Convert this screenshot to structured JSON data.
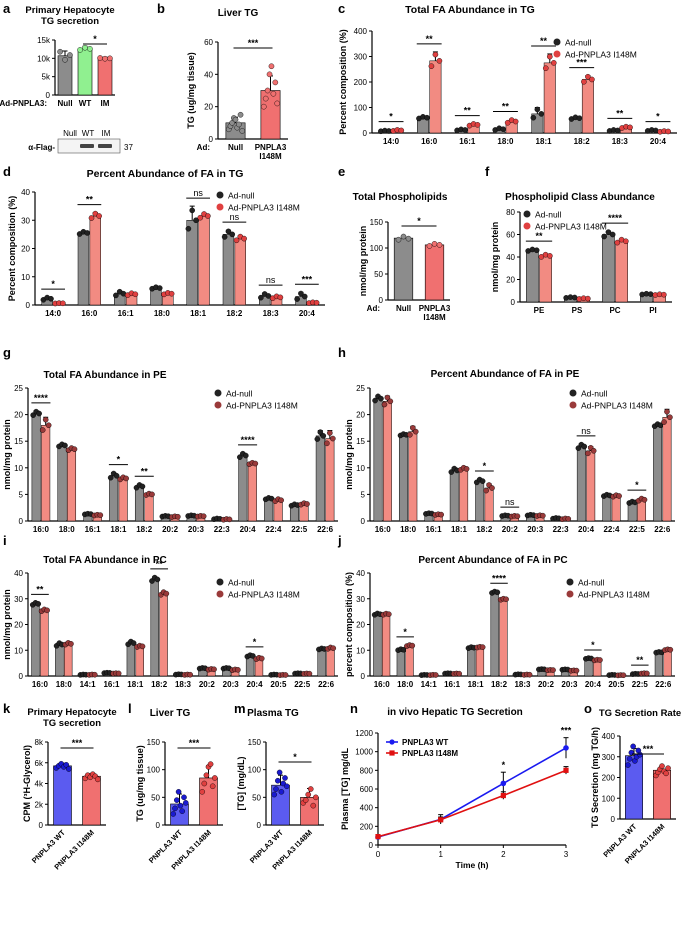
{
  "colors": {
    "grey": "#8c8c8c",
    "green": "#90f090",
    "red": "#f07070",
    "pink": "#f28b82",
    "blue": "#5b5bf0",
    "blue_line": "#1a1af0",
    "red_line": "#e01010",
    "dot_dark": "#222222",
    "dot_red": "#e04040",
    "dot_brown": "#9a3a3a",
    "dot_blue": "#1a1ad0"
  },
  "legend": {
    "ad_null": "Ad-null",
    "ad_im": "Ad-PNPLA3 I148M",
    "wt": "PNPLA3 WT",
    "im": "PNPLA3 I148M"
  },
  "blot": {
    "label": "α-Flag-",
    "lanes": [
      "Null",
      "WT",
      "IM"
    ],
    "marker": "37"
  },
  "chart_data": [
    {
      "panel": "a",
      "type": "bar",
      "title": "Primary Hepatocyte\nTG secretion",
      "ylabel": "CPM (³H-Glycerol)",
      "ylim": [
        0,
        15
      ],
      "yticks": [
        0,
        5,
        10,
        15
      ],
      "ytick_labels": [
        "0",
        "5k",
        "10k",
        "15k"
      ],
      "categories": [
        "Null",
        "WT",
        "IM"
      ],
      "x_prefix": "Ad-PNPLA3:",
      "values": [
        10.7,
        12.6,
        10.0
      ],
      "errors": [
        1.3,
        0.7,
        0.3
      ],
      "bar_colors": [
        "grey",
        "green",
        "red"
      ],
      "points": [
        [
          11.8,
          9.6,
          10.9
        ],
        [
          12.3,
          12.9,
          12.6
        ],
        [
          10.1,
          9.9,
          10.0
        ]
      ],
      "sig": [
        {
          "from": 1,
          "to": 2,
          "label": "*"
        }
      ]
    },
    {
      "panel": "b",
      "type": "bar",
      "title": "Liver TG",
      "ylabel": "TG (ug/mg tissue)",
      "ylim": [
        0,
        60
      ],
      "yticks": [
        0,
        20,
        40,
        60
      ],
      "categories": [
        "Null",
        "PNPLA3 I148M"
      ],
      "x_prefix": "Ad:",
      "values": [
        10.0,
        30.0
      ],
      "errors": [
        3.5,
        9.0
      ],
      "bar_colors": [
        "grey",
        "red"
      ],
      "points": [
        [
          6,
          8,
          10,
          13,
          12,
          7,
          9,
          15,
          5
        ],
        [
          20,
          25,
          30,
          40,
          45,
          28,
          35,
          22
        ]
      ],
      "sig": [
        {
          "from": 0,
          "to": 1,
          "label": "***"
        }
      ]
    },
    {
      "panel": "c",
      "type": "bar",
      "title": "Total FA Abundance in TG",
      "ylabel": "Percent composition (%)",
      "ylim": [
        0,
        400
      ],
      "yticks": [
        0,
        100,
        200,
        300,
        400
      ],
      "categories": [
        "14:0",
        "16:0",
        "16:1",
        "18:0",
        "18:1",
        "18:2",
        "18:3",
        "20:4"
      ],
      "series": [
        {
          "name": "Ad-null",
          "values": [
            8,
            60,
            12,
            15,
            75,
            58,
            10,
            10
          ],
          "errors": [
            2,
            5,
            3,
            5,
            25,
            5,
            3,
            3
          ]
        },
        {
          "name": "Ad-PNPLA3 I148M",
          "values": [
            10,
            283,
            32,
            45,
            275,
            210,
            22,
            6
          ],
          "errors": [
            3,
            35,
            5,
            8,
            35,
            15,
            4,
            2
          ]
        }
      ],
      "sig": [
        "*",
        "**",
        "**",
        "**",
        "**",
        "***",
        "**",
        "*"
      ]
    },
    {
      "panel": "d",
      "type": "bar",
      "title": "Percent Abundance of FA in TG",
      "ylabel": "Percent composition (%)",
      "ylim": [
        0,
        40
      ],
      "yticks": [
        0,
        10,
        20,
        30,
        40
      ],
      "categories": [
        "14:0",
        "16:0",
        "16:1",
        "18:0",
        "18:1",
        "18:2",
        "18:3",
        "20:4"
      ],
      "series": [
        {
          "name": "Ad-null",
          "values": [
            2.2,
            25.5,
            4.0,
            6.0,
            30.0,
            25.0,
            3.2,
            3.0
          ],
          "errors": [
            0.6,
            0.6,
            1.0,
            0.4,
            5.0,
            1.5,
            1.0,
            1.5
          ]
        },
        {
          "name": "Ad-PNPLA3 I148M",
          "values": [
            0.6,
            31.5,
            3.8,
            4.0,
            31.5,
            23.5,
            2.7,
            0.8
          ],
          "errors": [
            0.1,
            1.2,
            0.5,
            0.4,
            1.0,
            1.0,
            0.5,
            0.2
          ]
        }
      ],
      "sig": [
        "*",
        "**",
        "",
        "",
        "ns",
        "ns",
        "ns",
        "***"
      ]
    },
    {
      "panel": "e",
      "type": "bar",
      "title": "Total  Phospholipids",
      "ylabel": "nmol/mg protein",
      "ylim": [
        0,
        150
      ],
      "yticks": [
        0,
        50,
        100,
        150
      ],
      "categories": [
        "Null",
        "PNPLA3 I148M"
      ],
      "x_prefix": "Ad:",
      "values": [
        119,
        106
      ],
      "errors": [
        4,
        3
      ],
      "bar_colors": [
        "grey",
        "red"
      ],
      "points": [
        [
          116,
          122,
          118
        ],
        [
          104,
          108,
          106
        ]
      ],
      "sig": [
        {
          "from": 0,
          "to": 1,
          "label": "*"
        }
      ]
    },
    {
      "panel": "f",
      "type": "bar",
      "title": "Phospholipid Class Abundance",
      "ylabel": "nmol/mg protein",
      "ylim": [
        0,
        80
      ],
      "yticks": [
        0,
        20,
        40,
        60,
        80
      ],
      "categories": [
        "PE",
        "PS",
        "PC",
        "PI"
      ],
      "series": [
        {
          "name": "Ad-null",
          "values": [
            46,
            4,
            60,
            7
          ],
          "errors": [
            1,
            0.5,
            3,
            0.5
          ]
        },
        {
          "name": "Ad-PNPLA3 I148M",
          "values": [
            41,
            3,
            54,
            6.5
          ],
          "errors": [
            1.5,
            0.5,
            2,
            0.5
          ]
        }
      ],
      "sig": [
        "**",
        "",
        "****",
        ""
      ]
    },
    {
      "panel": "g",
      "type": "bar",
      "title": "Total FA Abundance in PE",
      "ylabel": "nmol/mg protein",
      "ylim": [
        0,
        25
      ],
      "yticks": [
        0,
        5,
        10,
        15,
        20,
        25
      ],
      "categories": [
        "16:0",
        "18:0",
        "16:1",
        "18:1",
        "18:2",
        "20:2",
        "20:3",
        "22:3",
        "20:4",
        "22:4",
        "22:5",
        "22:6"
      ],
      "series": [
        {
          "name": "Ad-null",
          "values": [
            20.2,
            14.2,
            1.3,
            8.5,
            6.5,
            0.9,
            1.0,
            0.4,
            12.3,
            4.2,
            3.0,
            16.0
          ],
          "errors": [
            0.5,
            0.3,
            0.1,
            0.6,
            0.4,
            0.1,
            0.1,
            0.1,
            0.5,
            0.2,
            0.2,
            1.0
          ]
        },
        {
          "name": "Ad-PNPLA3 I148M",
          "values": [
            18.0,
            13.5,
            1.1,
            8.0,
            5.0,
            0.8,
            0.9,
            0.3,
            10.8,
            3.9,
            3.2,
            15.5
          ],
          "errors": [
            1.5,
            0.3,
            0.1,
            0.3,
            0.2,
            0.1,
            0.1,
            0.1,
            0.2,
            0.3,
            0.2,
            1.5
          ]
        }
      ],
      "sig": [
        "****",
        "",
        "",
        "*",
        "**",
        "",
        "",
        "",
        "****",
        "",
        "",
        ""
      ]
    },
    {
      "panel": "h",
      "type": "bar",
      "title": "Percent Abundance of FA in PE",
      "ylabel": "nmol/mg protein",
      "ylim": [
        0,
        25
      ],
      "yticks": [
        0,
        5,
        10,
        15,
        20,
        25
      ],
      "categories": [
        "16:0",
        "18:0",
        "16:1",
        "18:1",
        "18:2",
        "20:2",
        "20:3",
        "22:3",
        "20:4",
        "22:4",
        "22:5",
        "22:6"
      ],
      "series": [
        {
          "name": "Ad-null",
          "values": [
            23.0,
            16.2,
            1.4,
            9.5,
            7.5,
            1.0,
            1.1,
            0.5,
            14.0,
            4.8,
            3.5,
            18.0
          ],
          "errors": [
            0.6,
            0.2,
            0.1,
            0.5,
            0.4,
            0.1,
            0.1,
            0.1,
            0.5,
            0.2,
            0.2,
            0.3
          ]
        },
        {
          "name": "Ad-PNPLA3 I148M",
          "values": [
            22.5,
            16.8,
            1.2,
            9.8,
            6.2,
            0.9,
            1.0,
            0.4,
            13.2,
            4.7,
            4.0,
            19.5
          ],
          "errors": [
            1.0,
            1.0,
            0.1,
            0.3,
            0.8,
            0.1,
            0.1,
            0.1,
            0.8,
            0.2,
            0.3,
            1.5
          ]
        }
      ],
      "sig": [
        "",
        "",
        "",
        "",
        "*",
        "ns",
        "",
        "",
        "ns",
        "",
        "*",
        ""
      ]
    },
    {
      "panel": "i",
      "type": "bar",
      "title": "Total FA Abundance in PC",
      "ylabel": "nmol/mg protein",
      "ylim": [
        0,
        40
      ],
      "yticks": [
        0,
        10,
        20,
        30,
        40
      ],
      "categories": [
        "16:0",
        "18:0",
        "14:1",
        "16:1",
        "18:1",
        "18:2",
        "18:3",
        "20:2",
        "20:3",
        "20:4",
        "20:5",
        "22:5",
        "22:6"
      ],
      "series": [
        {
          "name": "Ad-null",
          "values": [
            28.0,
            12.2,
            0.5,
            1.2,
            12.8,
            37.5,
            0.6,
            3.0,
            3.0,
            7.8,
            0.5,
            1.0,
            10.5
          ],
          "errors": [
            0.6,
            0.8,
            0.1,
            0.1,
            0.8,
            1.0,
            0.1,
            0.2,
            0.2,
            0.4,
            0.1,
            0.1,
            0.3
          ]
        },
        {
          "name": "Ad-PNPLA3 I148M",
          "values": [
            25.5,
            12.5,
            0.5,
            1.0,
            11.5,
            32.0,
            0.5,
            2.6,
            2.4,
            6.8,
            0.4,
            0.9,
            10.8
          ],
          "errors": [
            0.5,
            0.5,
            0.1,
            0.1,
            0.4,
            0.8,
            0.1,
            0.2,
            0.2,
            0.4,
            0.1,
            0.1,
            0.4
          ]
        }
      ],
      "sig": [
        "**",
        "",
        "",
        "",
        "",
        "**",
        "",
        "",
        "",
        "*",
        "",
        "",
        ""
      ]
    },
    {
      "panel": "j",
      "type": "bar",
      "title": "Percent Abundance of FA in PC",
      "ylabel": "percent composition (%)",
      "ylim": [
        0,
        40
      ],
      "yticks": [
        0,
        10,
        20,
        30,
        40
      ],
      "categories": [
        "16:0",
        "18:0",
        "14:1",
        "16:1",
        "18:1",
        "18:2",
        "18:3",
        "20:2",
        "20:3",
        "20:4",
        "20:5",
        "22:5",
        "22:6"
      ],
      "series": [
        {
          "name": "Ad-null",
          "values": [
            24.0,
            10.2,
            0.4,
            1.0,
            11.0,
            32.5,
            0.6,
            2.6,
            2.5,
            6.8,
            0.4,
            0.8,
            9.2
          ],
          "errors": [
            0.4,
            0.3,
            0.1,
            0.1,
            0.3,
            0.4,
            0.1,
            0.1,
            0.1,
            0.2,
            0.1,
            0.1,
            0.2
          ]
        },
        {
          "name": "Ad-PNPLA3 I148M",
          "values": [
            24.0,
            11.8,
            0.4,
            0.9,
            11.2,
            29.8,
            0.5,
            2.3,
            2.1,
            6.2,
            0.3,
            1.0,
            10.2
          ],
          "errors": [
            0.3,
            0.3,
            0.1,
            0.1,
            0.2,
            0.3,
            0.1,
            0.1,
            0.1,
            0.2,
            0.1,
            0.1,
            0.2
          ]
        }
      ],
      "sig": [
        "",
        "*",
        "",
        "",
        "",
        "****",
        "",
        "",
        "",
        "*",
        "",
        "**",
        ""
      ]
    },
    {
      "panel": "k",
      "type": "bar",
      "title": "Primary   Hepatocyte\nTG secretion",
      "ylabel": "CPM (³H-Glycerol)",
      "ylim": [
        0,
        8
      ],
      "yticks": [
        0,
        2,
        4,
        6,
        8
      ],
      "ytick_labels": [
        "0",
        "2k",
        "4k",
        "6k",
        "8k"
      ],
      "categories": [
        "PNPLA3 WT",
        "PNPLA3 I148M"
      ],
      "values": [
        5.7,
        4.7
      ],
      "errors": [
        0.25,
        0.25
      ],
      "bar_colors": [
        "blue",
        "red"
      ],
      "points": [
        [
          5.5,
          5.7,
          5.9,
          5.6,
          5.8,
          5.4
        ],
        [
          4.5,
          4.8,
          4.6,
          4.9,
          4.7,
          4.4
        ]
      ],
      "sig": [
        {
          "from": 0,
          "to": 1,
          "label": "***"
        }
      ]
    },
    {
      "panel": "l",
      "type": "bar",
      "title": "Liver TG",
      "ylabel": "TG (ug/mg tissue)",
      "ylim": [
        0,
        150
      ],
      "yticks": [
        0,
        50,
        100,
        150
      ],
      "categories": [
        "PNPLA3 WT",
        "PNPLA3 I148M"
      ],
      "values": [
        38,
        85
      ],
      "errors": [
        18,
        22
      ],
      "bar_colors": [
        "blue",
        "red"
      ],
      "points": [
        [
          20,
          30,
          45,
          60,
          35,
          25,
          50,
          40
        ],
        [
          60,
          75,
          90,
          105,
          110,
          70,
          85
        ]
      ],
      "sig": [
        {
          "from": 0,
          "to": 1,
          "label": "***"
        }
      ]
    },
    {
      "panel": "m",
      "type": "bar",
      "title": "Plasma TG",
      "ylabel": "[TG] (mg/dL)",
      "ylim": [
        0,
        150
      ],
      "yticks": [
        0,
        50,
        100,
        150
      ],
      "categories": [
        "PNPLA3 WT",
        "PNPLA3 I148M"
      ],
      "values": [
        72,
        50
      ],
      "errors": [
        18,
        16
      ],
      "bar_colors": [
        "blue",
        "red"
      ],
      "points": [
        [
          55,
          65,
          80,
          95,
          60,
          75,
          85,
          70
        ],
        [
          40,
          45,
          55,
          65,
          35,
          50
        ]
      ],
      "sig": [
        {
          "from": 0,
          "to": 1,
          "label": "*"
        }
      ]
    },
    {
      "panel": "n",
      "type": "line",
      "title": "in vivo Hepatic TG Secretion",
      "xlabel": "Time (h)",
      "ylabel": "Plasma [TG] mg/dL",
      "ylim": [
        0,
        1200
      ],
      "yticks": [
        0,
        200,
        400,
        600,
        800,
        1000,
        1200
      ],
      "x": [
        0,
        1,
        2,
        3
      ],
      "xlim": [
        0,
        3
      ],
      "xticks": [
        0,
        1,
        2,
        3
      ],
      "series": [
        {
          "name": "PNPLA3 WT",
          "values": [
            85,
            275,
            660,
            1040
          ],
          "errors": [
            10,
            50,
            120,
            110
          ]
        },
        {
          "name": "PNPLA3 I148M",
          "values": [
            90,
            270,
            530,
            800
          ],
          "errors": [
            10,
            30,
            40,
            40
          ]
        }
      ],
      "sig": [
        "",
        "",
        "*",
        "***"
      ]
    },
    {
      "panel": "o",
      "type": "bar",
      "title": "TG Secretion Rate",
      "ylabel": "TG Secretion (mg TG/h)",
      "ylim": [
        0,
        400
      ],
      "yticks": [
        0,
        100,
        200,
        300,
        400
      ],
      "categories": [
        "PNPLA3 WT",
        "PNPLA3 I148M"
      ],
      "values": [
        305,
        235
      ],
      "errors": [
        35,
        20
      ],
      "bar_colors": [
        "blue",
        "red"
      ],
      "points": [
        [
          260,
          290,
          320,
          350,
          280,
          300,
          330,
          310
        ],
        [
          210,
          225,
          240,
          255,
          230,
          220,
          245
        ]
      ],
      "sig": [
        {
          "from": 0,
          "to": 1,
          "label": "***"
        }
      ]
    }
  ]
}
